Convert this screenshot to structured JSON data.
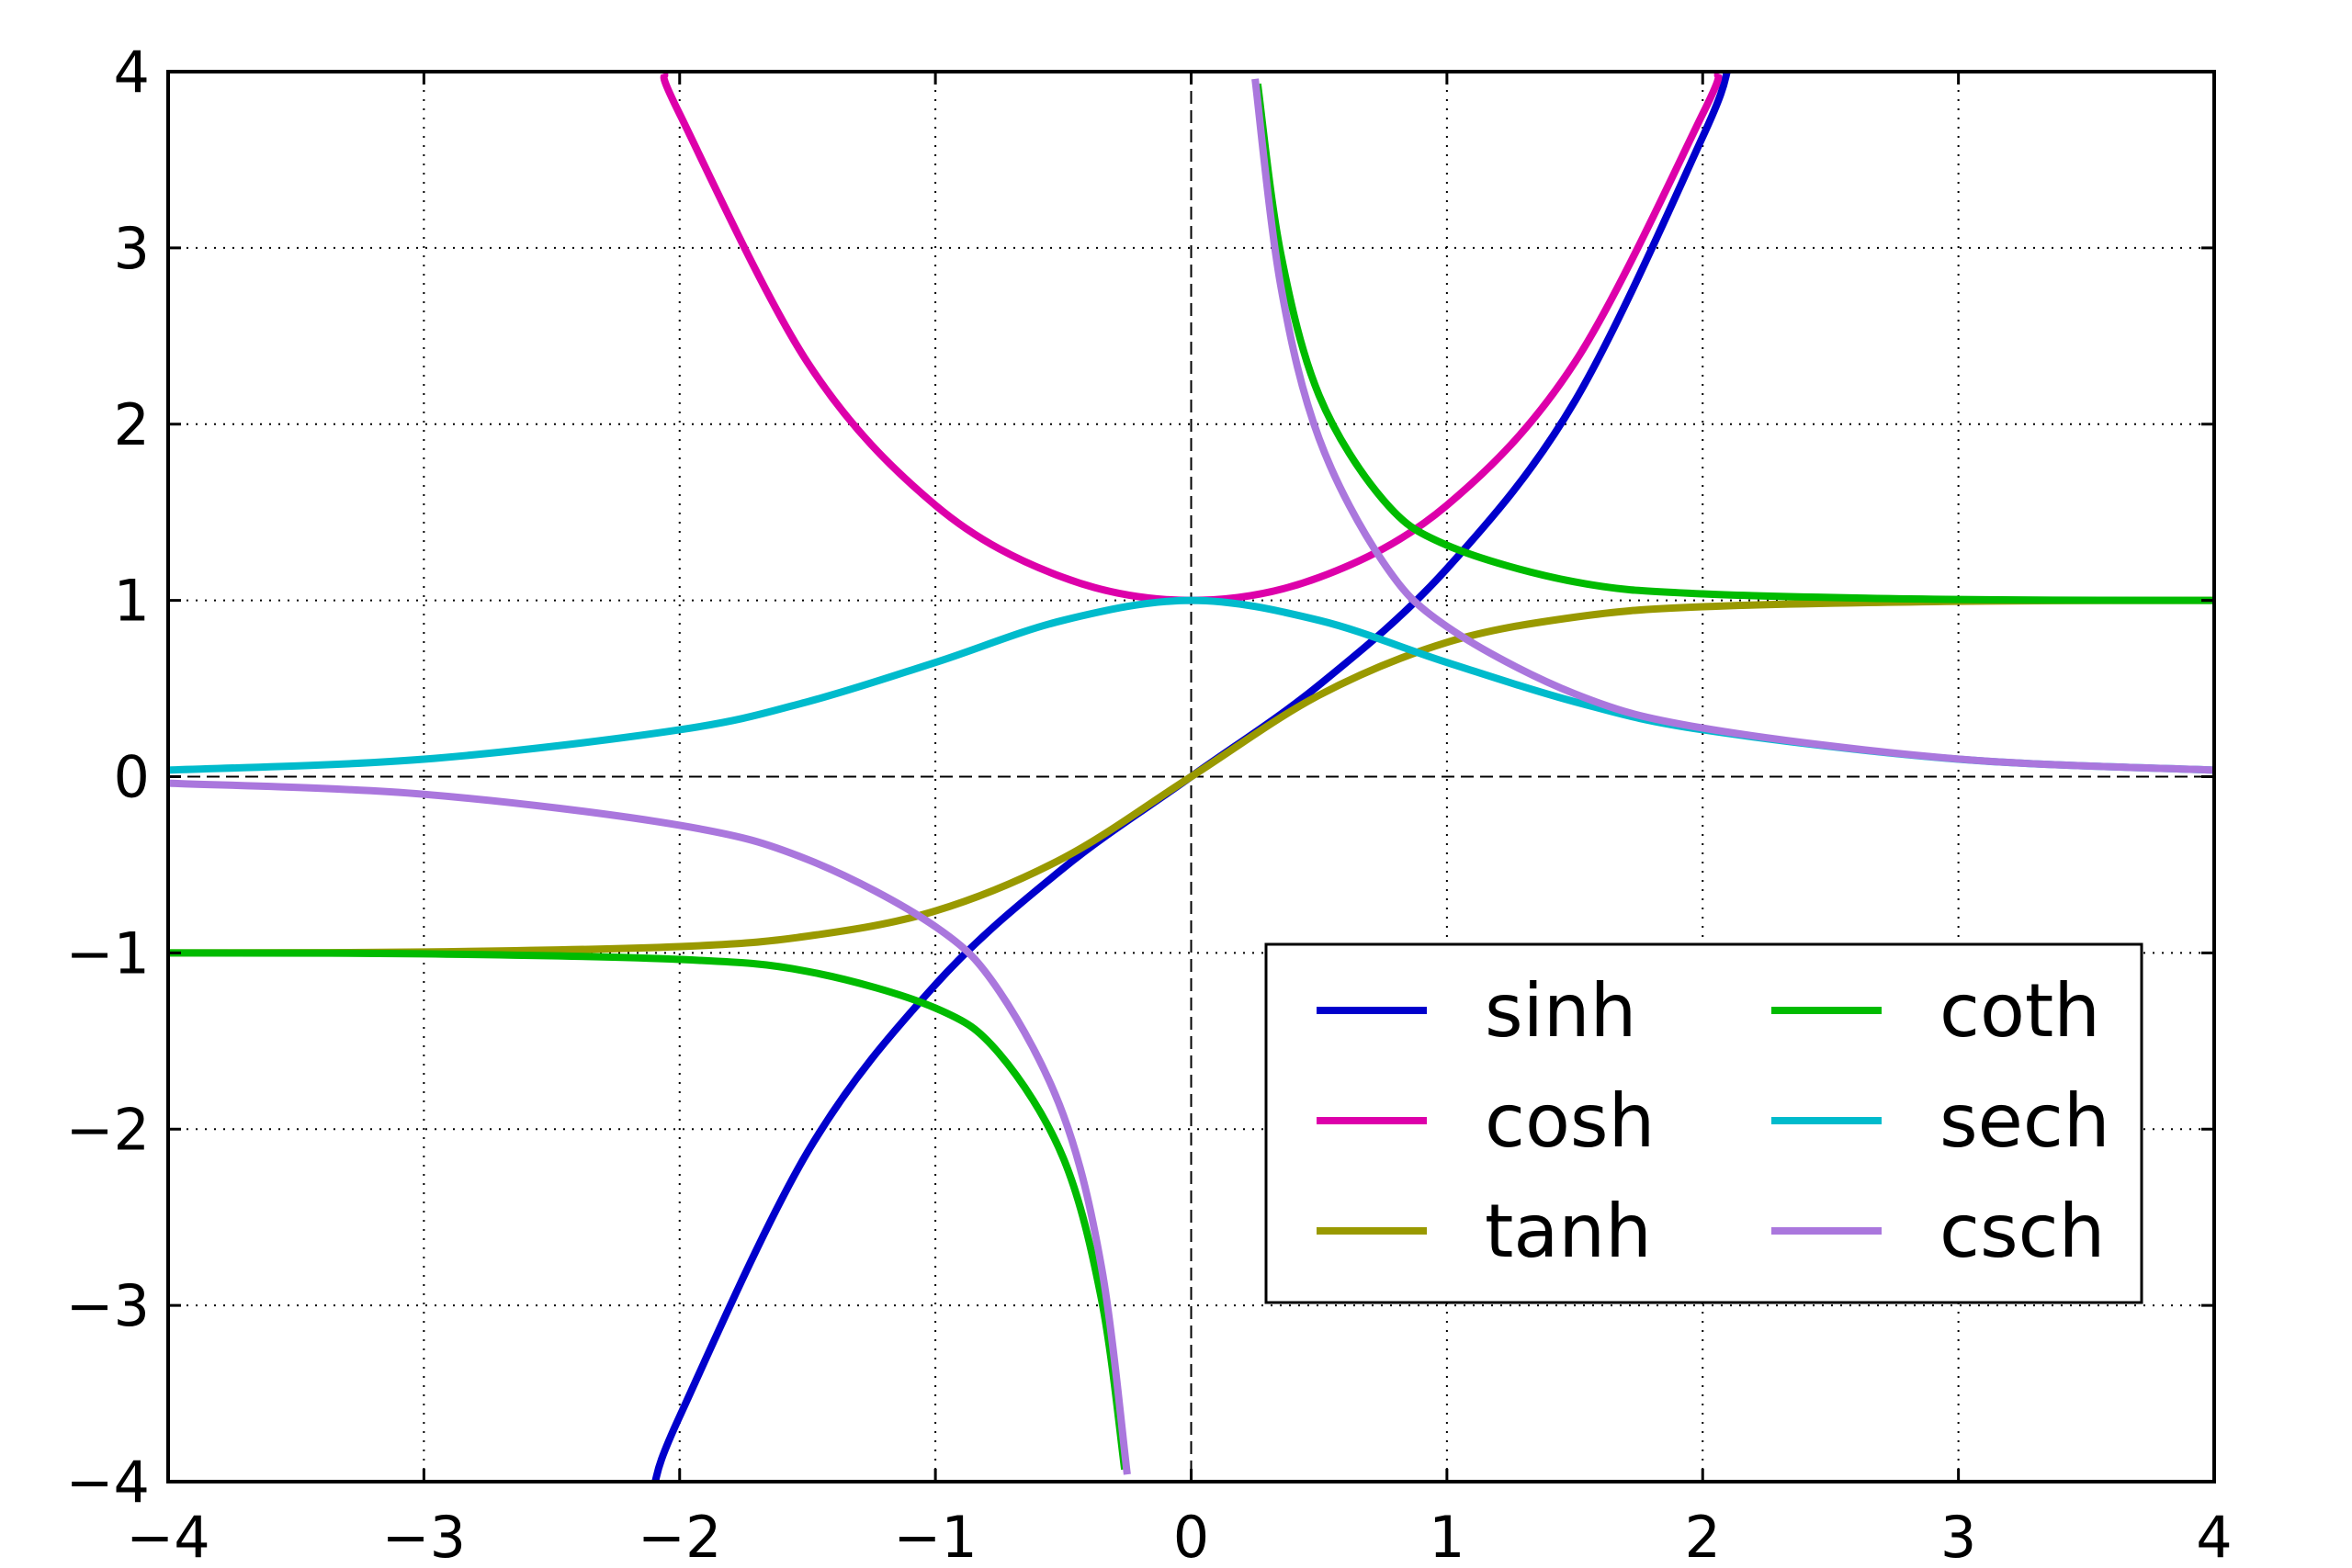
{
  "chart_data": {
    "type": "line",
    "title": "",
    "xlabel": "",
    "ylabel": "",
    "xlim": [
      -4,
      4
    ],
    "ylim": [
      -4,
      4
    ],
    "grid": true,
    "grid_style": "dotted",
    "zero_lines": "dashed",
    "legend_placement": "lower-right",
    "legend_columns": 2,
    "x_ticks": [
      -4,
      -3,
      -2,
      -1,
      0,
      1,
      2,
      3,
      4
    ],
    "y_ticks": [
      -4,
      -3,
      -2,
      -1,
      0,
      1,
      2,
      3,
      4
    ],
    "x_tick_labels": [
      "−4",
      "−3",
      "−2",
      "−1",
      "0",
      "1",
      "2",
      "3",
      "4"
    ],
    "y_tick_labels": [
      "−4",
      "−3",
      "−2",
      "−1",
      "0",
      "1",
      "2",
      "3",
      "4"
    ],
    "series": [
      {
        "name": "sinh",
        "color": "#0000cc",
        "x": [
          -2.1,
          -2.0,
          -1.5,
          -1.0,
          -0.5,
          0.0,
          0.5,
          1.0,
          1.5,
          2.0,
          2.1
        ],
        "y": [
          -4.02,
          -3.63,
          -2.13,
          -1.18,
          -0.52,
          0.0,
          0.52,
          1.18,
          2.13,
          3.63,
          4.02
        ]
      },
      {
        "name": "cosh",
        "color": "#dd00aa",
        "x": [
          -2.06,
          -2.0,
          -1.5,
          -1.0,
          -0.5,
          0.0,
          0.5,
          1.0,
          1.5,
          2.0,
          2.06
        ],
        "y": [
          3.99,
          3.76,
          2.35,
          1.54,
          1.13,
          1.0,
          1.13,
          1.54,
          2.35,
          3.76,
          3.99
        ]
      },
      {
        "name": "tanh",
        "color": "#999900",
        "x": [
          -4.0,
          -3.0,
          -2.0,
          -1.5,
          -1.0,
          -0.5,
          0.0,
          0.5,
          1.0,
          1.5,
          2.0,
          3.0,
          4.0
        ],
        "y": [
          -1.0,
          -0.995,
          -0.964,
          -0.905,
          -0.762,
          -0.462,
          0.0,
          0.462,
          0.762,
          0.905,
          0.964,
          0.995,
          1.0
        ]
      },
      {
        "name": "coth",
        "color": "#00bb00",
        "x": [
          -4.0,
          -3.0,
          -2.0,
          -1.5,
          -1.0,
          -0.75,
          -0.5,
          -0.35,
          -0.26,
          0.26,
          0.35,
          0.5,
          0.75,
          1.0,
          1.5,
          2.0,
          3.0,
          4.0
        ],
        "y": [
          -1.0,
          -1.005,
          -1.037,
          -1.105,
          -1.313,
          -1.572,
          -2.164,
          -2.97,
          -3.93,
          3.93,
          2.97,
          2.164,
          1.572,
          1.313,
          1.105,
          1.037,
          1.005,
          1.0
        ]
      },
      {
        "name": "sech",
        "color": "#00bbcc",
        "x": [
          -4.0,
          -3.0,
          -2.0,
          -1.5,
          -1.0,
          -0.5,
          0.0,
          0.5,
          1.0,
          1.5,
          2.0,
          3.0,
          4.0
        ],
        "y": [
          0.037,
          0.099,
          0.266,
          0.425,
          0.648,
          0.887,
          1.0,
          0.887,
          0.648,
          0.425,
          0.266,
          0.099,
          0.037
        ]
      },
      {
        "name": "csch",
        "color": "#aa77dd",
        "x": [
          -4.0,
          -3.0,
          -2.0,
          -1.5,
          -1.0,
          -0.75,
          -0.5,
          -0.35,
          -0.25,
          0.25,
          0.35,
          0.5,
          0.75,
          1.0,
          1.5,
          2.0,
          3.0,
          4.0
        ],
        "y": [
          -0.037,
          -0.1,
          -0.276,
          -0.47,
          -0.851,
          -1.218,
          -1.919,
          -2.788,
          -3.959,
          3.959,
          2.788,
          1.919,
          1.218,
          0.851,
          0.47,
          0.276,
          0.1,
          0.037
        ]
      }
    ]
  }
}
